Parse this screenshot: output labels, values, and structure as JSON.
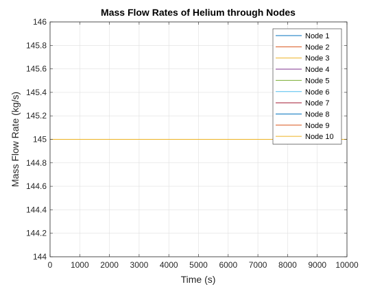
{
  "chart_data": {
    "type": "line",
    "title": "Mass Flow Rates of Helium through Nodes",
    "xlabel": "Time (s)",
    "ylabel": "Mass Flow Rate (kg/s)",
    "xlim": [
      0,
      10000
    ],
    "ylim": [
      144,
      146
    ],
    "xticks": [
      0,
      1000,
      2000,
      3000,
      4000,
      5000,
      6000,
      7000,
      8000,
      9000,
      10000
    ],
    "yticks": [
      144,
      144.2,
      144.4,
      144.6,
      144.8,
      145,
      145.2,
      145.4,
      145.6,
      145.8,
      146
    ],
    "grid": true,
    "legend_location": "top-right",
    "series": [
      {
        "name": "Node 1",
        "color": "#0072BD",
        "x": [
          0,
          10000
        ],
        "y": [
          145,
          145
        ]
      },
      {
        "name": "Node 2",
        "color": "#D95319",
        "x": [
          0,
          10000
        ],
        "y": [
          145,
          145
        ]
      },
      {
        "name": "Node 3",
        "color": "#EDB120",
        "x": [
          0,
          10000
        ],
        "y": [
          145,
          145
        ]
      },
      {
        "name": "Node 4",
        "color": "#7E2F8E",
        "x": [
          0,
          10000
        ],
        "y": [
          145,
          145
        ]
      },
      {
        "name": "Node 5",
        "color": "#77AC30",
        "x": [
          0,
          10000
        ],
        "y": [
          145,
          145
        ]
      },
      {
        "name": "Node 6",
        "color": "#4DBEEE",
        "x": [
          0,
          10000
        ],
        "y": [
          145,
          145
        ]
      },
      {
        "name": "Node 7",
        "color": "#A2142F",
        "x": [
          0,
          10000
        ],
        "y": [
          145,
          145
        ]
      },
      {
        "name": "Node 8",
        "color": "#0072BD",
        "x": [
          0,
          10000
        ],
        "y": [
          145,
          145
        ]
      },
      {
        "name": "Node 9",
        "color": "#D95319",
        "x": [
          0,
          10000
        ],
        "y": [
          145,
          145
        ]
      },
      {
        "name": "Node 10",
        "color": "#EDB120",
        "x": [
          0,
          10000
        ],
        "y": [
          145,
          145
        ]
      }
    ]
  }
}
